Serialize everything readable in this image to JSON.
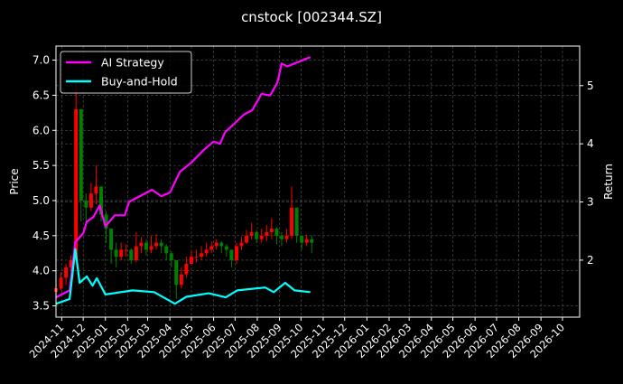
{
  "chart_data": {
    "type": "line",
    "title": "cnstock [002344.SZ]",
    "xlabel": "",
    "ylabel": "Price",
    "ylabel_right": "Return",
    "xlim": [
      "2024-10-24",
      "2026-10-25"
    ],
    "ylim": [
      3.34,
      7.2
    ],
    "ylim_right": [
      1.02,
      5.68
    ],
    "x_ticks": [
      "2024-11",
      "2024-12",
      "2025-01",
      "2025-02",
      "2025-03",
      "2025-04",
      "2025-05",
      "2025-06",
      "2025-07",
      "2025-08",
      "2025-09",
      "2025-10",
      "2025-11",
      "2025-12",
      "2026-01",
      "2026-02",
      "2026-03",
      "2026-04",
      "2026-05",
      "2026-06",
      "2026-07",
      "2026-08",
      "2026-09",
      "2026-10"
    ],
    "y_ticks": [
      "3.5",
      "4.0",
      "4.5",
      "5.0",
      "5.5",
      "6.0",
      "6.5",
      "7.0"
    ],
    "y_ticks_right": [
      "2",
      "3",
      "4",
      "5"
    ],
    "grid": true,
    "legend_placement": "top-left",
    "background": "#000000",
    "candles": {
      "up_color": "#ff0000",
      "down_color": "#008000",
      "points": [
        [
          "2024-10-24",
          3.7,
          3.75,
          3.95,
          3.65
        ],
        [
          "2024-10-31",
          3.75,
          3.9,
          3.98,
          3.72
        ],
        [
          "2024-11-07",
          3.9,
          4.05,
          4.1,
          3.8
        ],
        [
          "2024-11-14",
          4.05,
          4.15,
          4.22,
          4.0
        ],
        [
          "2024-11-21",
          4.15,
          6.3,
          6.7,
          5.6
        ],
        [
          "2024-11-28",
          6.3,
          5.0,
          5.95,
          4.7
        ],
        [
          "2024-12-05",
          5.0,
          4.9,
          5.1,
          4.7
        ],
        [
          "2024-12-12",
          4.9,
          5.1,
          5.25,
          4.85
        ],
        [
          "2024-12-19",
          5.1,
          5.2,
          5.5,
          4.95
        ],
        [
          "2024-12-26",
          5.2,
          4.8,
          5.1,
          4.7
        ],
        [
          "2025-01-02",
          4.8,
          4.6,
          4.85,
          4.4
        ],
        [
          "2025-01-09",
          4.6,
          4.3,
          4.5,
          4.1
        ],
        [
          "2025-01-16",
          4.3,
          4.2,
          4.4,
          4.05
        ],
        [
          "2025-01-23",
          4.2,
          4.3,
          4.4,
          4.15
        ],
        [
          "2025-01-30",
          4.3,
          4.3,
          4.38,
          4.2
        ],
        [
          "2025-02-06",
          4.3,
          4.15,
          4.32,
          4.1
        ],
        [
          "2025-02-13",
          4.15,
          4.35,
          4.55,
          4.12
        ],
        [
          "2025-02-20",
          4.35,
          4.4,
          4.48,
          4.25
        ],
        [
          "2025-02-27",
          4.4,
          4.3,
          4.45,
          4.22
        ],
        [
          "2025-03-06",
          4.3,
          4.35,
          4.5,
          4.25
        ],
        [
          "2025-03-13",
          4.35,
          4.4,
          4.52,
          4.3
        ],
        [
          "2025-03-20",
          4.4,
          4.35,
          4.45,
          4.25
        ],
        [
          "2025-03-27",
          4.35,
          4.25,
          4.38,
          4.15
        ],
        [
          "2025-04-03",
          4.25,
          4.15,
          4.28,
          4.05
        ],
        [
          "2025-04-10",
          4.15,
          3.8,
          4.1,
          3.6
        ],
        [
          "2025-04-17",
          3.8,
          3.95,
          4.05,
          3.75
        ],
        [
          "2025-04-24",
          3.95,
          4.1,
          4.2,
          3.9
        ],
        [
          "2025-05-01",
          4.1,
          4.2,
          4.28,
          4.1
        ],
        [
          "2025-05-08",
          4.2,
          4.2,
          4.3,
          4.12
        ],
        [
          "2025-05-15",
          4.2,
          4.25,
          4.35,
          4.15
        ],
        [
          "2025-05-22",
          4.25,
          4.3,
          4.4,
          4.2
        ],
        [
          "2025-05-29",
          4.3,
          4.35,
          4.42,
          4.25
        ],
        [
          "2025-06-05",
          4.35,
          4.4,
          4.45,
          4.3
        ],
        [
          "2025-06-12",
          4.4,
          4.35,
          4.42,
          4.25
        ],
        [
          "2025-06-19",
          4.35,
          4.3,
          4.38,
          4.2
        ],
        [
          "2025-06-26",
          4.3,
          4.15,
          4.3,
          4.05
        ],
        [
          "2025-07-03",
          4.15,
          4.35,
          4.4,
          4.1
        ],
        [
          "2025-07-10",
          4.35,
          4.4,
          4.48,
          4.3
        ],
        [
          "2025-07-17",
          4.4,
          4.5,
          4.58,
          4.38
        ],
        [
          "2025-07-24",
          4.5,
          4.55,
          4.68,
          4.45
        ],
        [
          "2025-07-31",
          4.55,
          4.45,
          4.58,
          4.4
        ],
        [
          "2025-08-07",
          4.45,
          4.5,
          4.6,
          4.4
        ],
        [
          "2025-08-14",
          4.5,
          4.55,
          4.65,
          4.42
        ],
        [
          "2025-08-21",
          4.55,
          4.6,
          4.75,
          4.45
        ],
        [
          "2025-08-28",
          4.6,
          4.5,
          4.62,
          4.38
        ],
        [
          "2025-09-04",
          4.5,
          4.45,
          4.55,
          4.35
        ],
        [
          "2025-09-11",
          4.45,
          4.5,
          4.6,
          4.4
        ],
        [
          "2025-09-18",
          4.5,
          4.9,
          5.2,
          4.45
        ],
        [
          "2025-09-25",
          4.9,
          4.5,
          4.85,
          4.4
        ],
        [
          "2025-10-02",
          4.5,
          4.4,
          4.5,
          4.3
        ],
        [
          "2025-10-09",
          4.4,
          4.45,
          4.52,
          4.35
        ],
        [
          "2025-10-16",
          4.45,
          4.4,
          4.5,
          4.25
        ]
      ]
    },
    "series": [
      {
        "name": "AI Strategy",
        "color": "#ff00ff",
        "axis": "right",
        "points": [
          [
            "2024-10-24",
            1.36
          ],
          [
            "2024-11-12",
            1.48
          ],
          [
            "2024-11-20",
            2.31
          ],
          [
            "2024-12-01",
            2.46
          ],
          [
            "2024-12-06",
            2.66
          ],
          [
            "2024-12-15",
            2.74
          ],
          [
            "2024-12-24",
            2.94
          ],
          [
            "2025-01-01",
            2.58
          ],
          [
            "2025-01-14",
            2.77
          ],
          [
            "2025-01-28",
            2.77
          ],
          [
            "2025-02-03",
            3.0
          ],
          [
            "2025-02-18",
            3.1
          ],
          [
            "2025-03-07",
            3.21
          ],
          [
            "2025-03-20",
            3.1
          ],
          [
            "2025-04-01",
            3.16
          ],
          [
            "2025-04-15",
            3.52
          ],
          [
            "2025-05-01",
            3.68
          ],
          [
            "2025-05-18",
            3.89
          ],
          [
            "2025-06-01",
            4.04
          ],
          [
            "2025-06-10",
            4.0
          ],
          [
            "2025-06-17",
            4.2
          ],
          [
            "2025-07-01",
            4.36
          ],
          [
            "2025-07-13",
            4.5
          ],
          [
            "2025-07-25",
            4.58
          ],
          [
            "2025-08-07",
            4.86
          ],
          [
            "2025-08-19",
            4.83
          ],
          [
            "2025-08-29",
            5.05
          ],
          [
            "2025-09-04",
            5.38
          ],
          [
            "2025-09-12",
            5.33
          ],
          [
            "2025-10-14",
            5.49
          ]
        ]
      },
      {
        "name": "Buy-and-Hold",
        "color": "#00ffff",
        "axis": "right",
        "points": [
          [
            "2024-10-24",
            1.25
          ],
          [
            "2024-11-12",
            1.33
          ],
          [
            "2024-11-20",
            2.19
          ],
          [
            "2024-11-26",
            1.61
          ],
          [
            "2024-12-06",
            1.72
          ],
          [
            "2024-12-14",
            1.56
          ],
          [
            "2024-12-20",
            1.69
          ],
          [
            "2025-01-01",
            1.41
          ],
          [
            "2025-02-08",
            1.48
          ],
          [
            "2025-03-10",
            1.45
          ],
          [
            "2025-04-08",
            1.25
          ],
          [
            "2025-04-24",
            1.37
          ],
          [
            "2025-05-25",
            1.43
          ],
          [
            "2025-06-18",
            1.36
          ],
          [
            "2025-07-04",
            1.48
          ],
          [
            "2025-08-12",
            1.53
          ],
          [
            "2025-08-24",
            1.45
          ],
          [
            "2025-09-09",
            1.61
          ],
          [
            "2025-09-22",
            1.48
          ],
          [
            "2025-10-14",
            1.45
          ]
        ]
      }
    ]
  }
}
